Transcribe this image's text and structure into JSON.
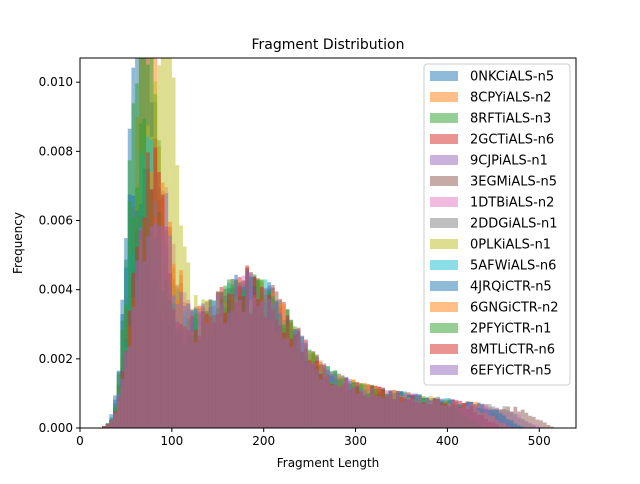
{
  "chart_data": {
    "type": "histogram",
    "title": "Fragment Distribution",
    "xlabel": "Fragment Length",
    "ylabel": "Frequency",
    "xlim": [
      0,
      540
    ],
    "ylim": [
      0,
      0.0107
    ],
    "x_ticks": [
      0,
      100,
      200,
      300,
      400,
      500
    ],
    "x_tick_labels": [
      "0",
      "100",
      "200",
      "300",
      "400",
      "500"
    ],
    "y_ticks": [
      0,
      0.002,
      0.004,
      0.006,
      0.008,
      0.01
    ],
    "y_tick_labels": [
      "0.000",
      "0.002",
      "0.004",
      "0.006",
      "0.008",
      "0.010"
    ],
    "grid": false,
    "legend_position": "upper-right",
    "bin_width": 4,
    "alpha": 0.5,
    "series": [
      {
        "name": "0NKCiALS-n5",
        "color": "#1f77b4",
        "max_x": 452,
        "peak1": 0.0098,
        "peak2": 0.0037,
        "peak1_x": 68
      },
      {
        "name": "8CPYiALS-n2",
        "color": "#ff7f0e",
        "max_x": 470,
        "peak1": 0.0082,
        "peak2": 0.0038,
        "peak1_x": 74
      },
      {
        "name": "8RFTiALS-n3",
        "color": "#2ca02c",
        "max_x": 448,
        "peak1": 0.009,
        "peak2": 0.0039,
        "peak1_x": 70
      },
      {
        "name": "2GCTiALS-n6",
        "color": "#d62728",
        "max_x": 462,
        "peak1": 0.0045,
        "peak2": 0.004,
        "peak1_x": 80
      },
      {
        "name": "9CJPiALS-n1",
        "color": "#9467bd",
        "max_x": 478,
        "peak1": 0.004,
        "peak2": 0.0036,
        "peak1_x": 82
      },
      {
        "name": "3EGMiALS-n5",
        "color": "#8c564b",
        "max_x": 518,
        "peak1": 0.0042,
        "peak2": 0.0038,
        "peak1_x": 78
      },
      {
        "name": "1DTBiALS-n2",
        "color": "#e377c2",
        "max_x": 505,
        "peak1": 0.004,
        "peak2": 0.0039,
        "peak1_x": 84
      },
      {
        "name": "2DDGiALS-n1",
        "color": "#7f7f7f",
        "max_x": 500,
        "peak1": 0.0041,
        "peak2": 0.0036,
        "peak1_x": 80
      },
      {
        "name": "0PLKiALS-n1",
        "color": "#bcbd22",
        "max_x": 445,
        "peak1": 0.0086,
        "peak2": 0.0035,
        "peak1_x": 90
      },
      {
        "name": "5AFWiALS-n6",
        "color": "#17becf",
        "max_x": 455,
        "peak1": 0.005,
        "peak2": 0.0037,
        "peak1_x": 72
      },
      {
        "name": "4JRQiCTR-n5",
        "color": "#1f77b4",
        "max_x": 485,
        "peak1": 0.0052,
        "peak2": 0.0038,
        "peak1_x": 58
      },
      {
        "name": "6GNGiCTR-n2",
        "color": "#ff7f0e",
        "max_x": 470,
        "peak1": 0.0044,
        "peak2": 0.0037,
        "peak1_x": 84
      },
      {
        "name": "2PFYiCTR-n1",
        "color": "#2ca02c",
        "max_x": 440,
        "peak1": 0.006,
        "peak2": 0.004,
        "peak1_x": 66
      },
      {
        "name": "8MTLiCTR-n6",
        "color": "#d62728",
        "max_x": 460,
        "peak1": 0.0046,
        "peak2": 0.0039,
        "peak1_x": 78
      },
      {
        "name": "6EFYiCTR-n5",
        "color": "#9467bd",
        "max_x": 474,
        "peak1": 0.0042,
        "peak2": 0.0036,
        "peak1_x": 82
      }
    ]
  }
}
